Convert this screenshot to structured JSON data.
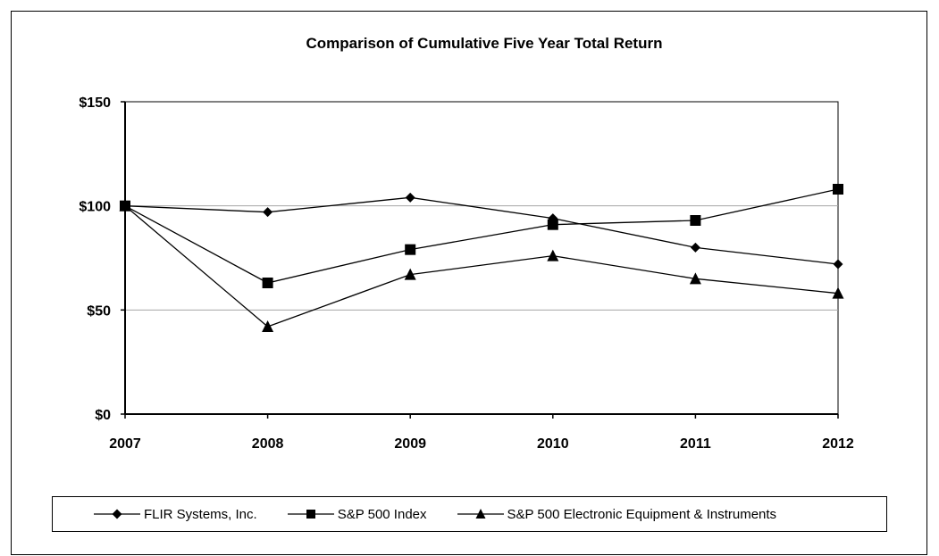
{
  "chart_data": {
    "type": "line",
    "title": "Comparison of Cumulative Five Year Total Return",
    "xlabel": "",
    "ylabel": "",
    "categories": [
      "2007",
      "2008",
      "2009",
      "2010",
      "2011",
      "2012"
    ],
    "y_ticks": [
      "$0",
      "$50",
      "$100",
      "$150"
    ],
    "ylim": [
      0,
      150
    ],
    "grid": "horizontal major gridlines",
    "legend_position": "bottom",
    "series": [
      {
        "name": "FLIR Systems, Inc.",
        "marker": "diamond",
        "values": [
          100,
          97,
          104,
          94,
          80,
          72
        ]
      },
      {
        "name": "S&P 500 Index",
        "marker": "square",
        "values": [
          100,
          63,
          79,
          91,
          93,
          108
        ]
      },
      {
        "name": "S&P 500 Electronic Equipment & Instruments",
        "marker": "triangle",
        "values": [
          100,
          42,
          67,
          76,
          65,
          58
        ]
      }
    ]
  },
  "colors": {
    "line": "#000000",
    "grid": "#a6a6a6",
    "background": "#ffffff"
  }
}
